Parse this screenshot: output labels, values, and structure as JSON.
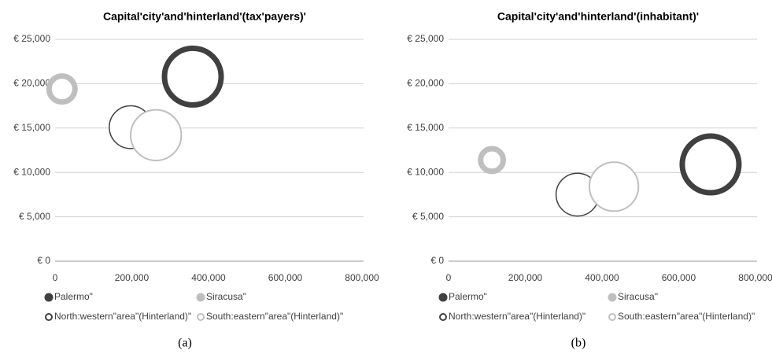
{
  "chart_data": [
    {
      "type": "bubble",
      "title": "Capital'city'and'hinterland'(tax'payers)'",
      "caption": "(a)",
      "xlim": [
        0,
        800000
      ],
      "xticks": [
        0,
        {
          "value": 200000,
          "label": "200,000"
        },
        {
          "value": 400000,
          "label": "400,000"
        },
        {
          "value": 600000,
          "label": "600,000"
        },
        {
          "value": 800000,
          "label": "800,000"
        }
      ],
      "ylim": [
        0,
        25000
      ],
      "yticks": [
        {
          "value": 0,
          "label": "€ 0"
        },
        {
          "value": 5000,
          "label": "€ 5,000"
        },
        {
          "value": 10000,
          "label": "€ 10,000"
        },
        {
          "value": 15000,
          "label": "€ 15,000"
        },
        {
          "value": 20000,
          "label": "€ 20,000"
        },
        {
          "value": 25000,
          "label": "€ 25,000"
        }
      ],
      "grid": true,
      "series": [
        {
          "name": "Palermo\"",
          "color": "#404040",
          "line_width": 7,
          "x": [
            359000
          ],
          "values": [
            20800
          ],
          "sizes": [
            100
          ]
        },
        {
          "name": "Siracusa\"",
          "color": "#bfbfbf",
          "line_width": 7,
          "x": [
            18000
          ],
          "values": [
            19400
          ],
          "sizes": [
            21
          ]
        },
        {
          "name": "North:western\"area\"(Hinterland)\"",
          "color": "#404040",
          "line_width": 1.5,
          "x": [
            197000
          ],
          "values": [
            15100
          ],
          "sizes": [
            57
          ]
        },
        {
          "name": "South:eastern\"area\"(Hinterland)\"",
          "color": "#bfbfbf",
          "line_width": 2,
          "x": [
            263000
          ],
          "values": [
            14200
          ],
          "sizes": [
            80
          ]
        }
      ]
    },
    {
      "type": "bubble",
      "title": "Capital'city'and'hinterland'(inhabitant)'",
      "caption": "(b)",
      "xlim": [
        0,
        800000
      ],
      "xticks": [
        0,
        {
          "value": 200000,
          "label": "200,000"
        },
        {
          "value": 400000,
          "label": "400,000"
        },
        {
          "value": 600000,
          "label": "600,000"
        },
        {
          "value": 800000,
          "label": "800,000"
        }
      ],
      "ylim": [
        0,
        25000
      ],
      "yticks": [
        {
          "value": 0,
          "label": "€ 0"
        },
        {
          "value": 5000,
          "label": "€ 5,000"
        },
        {
          "value": 10000,
          "label": "€ 10,000"
        },
        {
          "value": 15000,
          "label": "€ 15,000"
        },
        {
          "value": 20000,
          "label": "€ 20,000"
        },
        {
          "value": 25000,
          "label": "€ 25,000"
        }
      ],
      "grid": true,
      "series": [
        {
          "name": "Palermo\"",
          "color": "#404040",
          "line_width": 7,
          "x": [
            683000
          ],
          "values": [
            10900
          ],
          "sizes": [
            100
          ]
        },
        {
          "name": "Siracusa\"",
          "color": "#bfbfbf",
          "line_width": 7,
          "x": [
            113000
          ],
          "values": [
            11400
          ],
          "sizes": [
            16
          ]
        },
        {
          "name": "North:western\"area\"(Hinterland)\"",
          "color": "#404040",
          "line_width": 1.5,
          "x": [
            336000
          ],
          "values": [
            7500
          ],
          "sizes": [
            57
          ]
        },
        {
          "name": "South:eastern\"area\"(Hinterland)\"",
          "color": "#bfbfbf",
          "line_width": 2,
          "x": [
            431000
          ],
          "values": [
            8400
          ],
          "sizes": [
            75
          ]
        }
      ]
    }
  ]
}
